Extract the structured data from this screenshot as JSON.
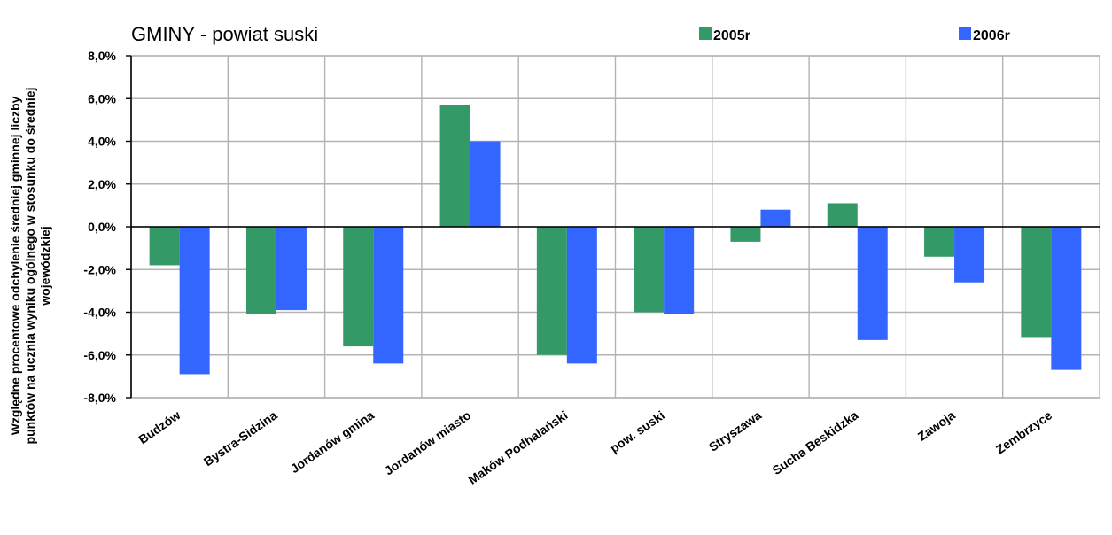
{
  "chart_data": {
    "type": "bar",
    "title": "GMINY -  powiat suski",
    "ylabel": "Względne procentowe odchylenie średniej gminnej liczby punktów na ucznia wyniku ogólnego w stosunku do średniej wojewódzkiej",
    "ylabel_lines": [
      "Względne procentowe odchylenie średniej gminnej liczby",
      "punktów na ucznia wyniku ogólnego w stosunku do średniej",
      "wojewódzkiej"
    ],
    "xlabel": "",
    "ylim": [
      -8,
      8
    ],
    "yticks": [
      8,
      6,
      4,
      2,
      0,
      -2,
      -4,
      -6,
      -8
    ],
    "ytick_labels": [
      "8,0%",
      "6,0%",
      "4,0%",
      "2,0%",
      "0,0%",
      "-2,0%",
      "-4,0%",
      "-6,0%",
      "-8,0%"
    ],
    "grid": true,
    "legend_position": "top",
    "categories": [
      "Budzów",
      "Bystra-Sidzina",
      "Jordanów gmina",
      "Jordanów miasto",
      "Maków Podhalański",
      "pow. suski",
      "Stryszawa",
      "Sucha Beskidzka",
      "Zawoja",
      "Zembrzyce"
    ],
    "series": [
      {
        "name": "2005r",
        "color": "#339966",
        "values": [
          -1.8,
          -4.1,
          -5.6,
          5.7,
          -6.0,
          -4.0,
          -0.7,
          1.1,
          -1.4,
          -5.2
        ]
      },
      {
        "name": "2006r",
        "color": "#3366FF",
        "values": [
          -6.9,
          -3.9,
          -6.4,
          4.0,
          -6.4,
          -4.1,
          0.8,
          -5.3,
          -2.6,
          -6.7
        ]
      }
    ]
  }
}
